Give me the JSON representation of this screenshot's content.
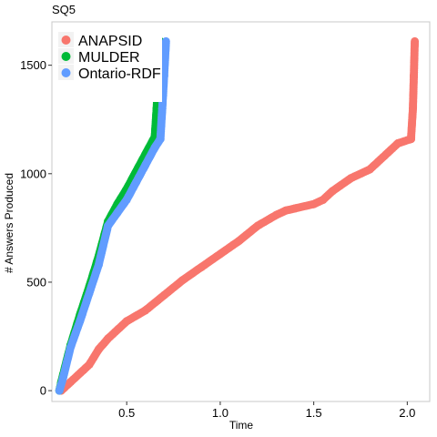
{
  "chart_data": {
    "type": "scatter",
    "title": "SQ5",
    "xlabel": "Time",
    "ylabel": "# Answers Produced",
    "xlim": [
      0.1,
      2.12
    ],
    "ylim": [
      -50,
      1700
    ],
    "xticks": [
      {
        "value": 0.5,
        "label": "0.5"
      },
      {
        "value": 1.0,
        "label": "1.0"
      },
      {
        "value": 1.5,
        "label": "1.5"
      },
      {
        "value": 2.0,
        "label": "2.0"
      }
    ],
    "yticks": [
      {
        "value": 0,
        "label": "0"
      },
      {
        "value": 500,
        "label": "500"
      },
      {
        "value": 1000,
        "label": "1000"
      },
      {
        "value": 1500,
        "label": "1500"
      }
    ],
    "grid": false,
    "legend_position": "top-left",
    "series": [
      {
        "name": "ANAPSID",
        "color": "#F8766D",
        "points": [
          [
            0.15,
            0
          ],
          [
            0.2,
            40
          ],
          [
            0.3,
            120
          ],
          [
            0.35,
            190
          ],
          [
            0.4,
            240
          ],
          [
            0.5,
            320
          ],
          [
            0.6,
            370
          ],
          [
            0.7,
            440
          ],
          [
            0.8,
            510
          ],
          [
            0.9,
            570
          ],
          [
            1.0,
            630
          ],
          [
            1.1,
            690
          ],
          [
            1.2,
            760
          ],
          [
            1.3,
            810
          ],
          [
            1.35,
            830
          ],
          [
            1.4,
            840
          ],
          [
            1.5,
            860
          ],
          [
            1.55,
            880
          ],
          [
            1.6,
            920
          ],
          [
            1.7,
            980
          ],
          [
            1.8,
            1020
          ],
          [
            1.9,
            1100
          ],
          [
            1.95,
            1140
          ],
          [
            2.02,
            1160
          ],
          [
            2.03,
            1300
          ],
          [
            2.035,
            1450
          ],
          [
            2.04,
            1610
          ]
        ]
      },
      {
        "name": "MULDER",
        "color": "#00BA38",
        "points": [
          [
            0.14,
            0
          ],
          [
            0.15,
            40
          ],
          [
            0.2,
            210
          ],
          [
            0.25,
            350
          ],
          [
            0.3,
            480
          ],
          [
            0.35,
            620
          ],
          [
            0.4,
            780
          ],
          [
            0.45,
            860
          ],
          [
            0.5,
            930
          ],
          [
            0.55,
            1010
          ],
          [
            0.6,
            1090
          ],
          [
            0.65,
            1170
          ],
          [
            0.66,
            1300
          ],
          [
            0.67,
            1450
          ],
          [
            0.68,
            1610
          ]
        ]
      },
      {
        "name": "Ontario-RDF",
        "color": "#619CFF",
        "points": [
          [
            0.14,
            0
          ],
          [
            0.16,
            60
          ],
          [
            0.2,
            200
          ],
          [
            0.25,
            320
          ],
          [
            0.3,
            450
          ],
          [
            0.35,
            580
          ],
          [
            0.4,
            760
          ],
          [
            0.45,
            820
          ],
          [
            0.5,
            880
          ],
          [
            0.55,
            960
          ],
          [
            0.6,
            1040
          ],
          [
            0.65,
            1120
          ],
          [
            0.68,
            1160
          ],
          [
            0.69,
            1300
          ],
          [
            0.7,
            1450
          ],
          [
            0.71,
            1610
          ]
        ]
      }
    ]
  }
}
